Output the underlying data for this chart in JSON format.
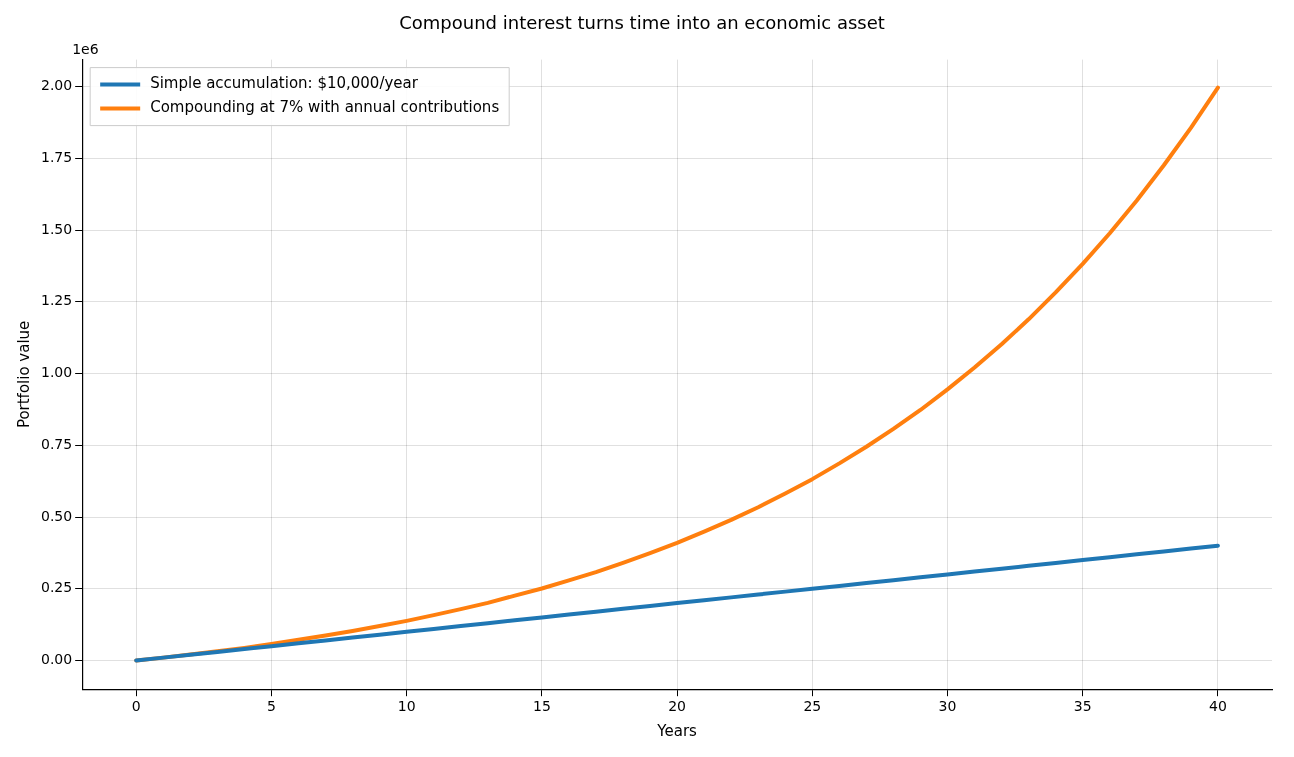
{
  "chart_data": {
    "type": "line",
    "title": "Compound interest turns time into an economic asset",
    "xlabel": "Years",
    "ylabel": "Portfolio value",
    "annotations": [
      "1e6"
    ],
    "x": [
      0,
      1,
      2,
      3,
      4,
      5,
      6,
      7,
      8,
      9,
      10,
      11,
      12,
      13,
      14,
      15,
      16,
      17,
      18,
      19,
      20,
      21,
      22,
      23,
      24,
      25,
      26,
      27,
      28,
      29,
      30,
      31,
      32,
      33,
      34,
      35,
      36,
      37,
      38,
      39,
      40
    ],
    "series": [
      {
        "name": "Simple accumulation: $10,000/year",
        "color": "#1f77b4",
        "values": [
          0,
          0.01,
          0.02,
          0.03,
          0.04,
          0.05,
          0.06,
          0.07,
          0.08,
          0.09,
          0.1,
          0.11,
          0.12,
          0.13,
          0.14,
          0.15,
          0.16,
          0.17,
          0.18,
          0.19,
          0.2,
          0.21,
          0.22,
          0.23,
          0.24,
          0.25,
          0.26,
          0.27,
          0.28,
          0.29,
          0.3,
          0.31,
          0.32,
          0.33,
          0.34,
          0.35,
          0.36,
          0.37,
          0.38,
          0.39,
          0.4
        ]
      },
      {
        "name": "Compounding at 7% with annual contributions",
        "color": "#ff7f0e",
        "values": [
          0,
          0.01,
          0.021,
          0.032,
          0.044,
          0.058,
          0.072,
          0.087,
          0.103,
          0.12,
          0.138,
          0.158,
          0.179,
          0.201,
          0.226,
          0.251,
          0.279,
          0.308,
          0.34,
          0.374,
          0.41,
          0.449,
          0.49,
          0.534,
          0.582,
          0.632,
          0.687,
          0.745,
          0.807,
          0.873,
          0.945,
          1.021,
          1.102,
          1.189,
          1.283,
          1.382,
          1.489,
          1.603,
          1.726,
          1.856,
          1.996
        ]
      }
    ],
    "xlim": [
      -2,
      42
    ],
    "xticks": [
      0,
      5,
      10,
      15,
      20,
      25,
      30,
      35,
      40
    ],
    "ylim": [
      -0.1,
      2.094
    ],
    "yticks": [
      {
        "value": 0,
        "label": "0.00"
      },
      {
        "value": 0.25,
        "label": "0.25"
      },
      {
        "value": 0.5,
        "label": "0.50"
      },
      {
        "value": 0.75,
        "label": "0.75"
      },
      {
        "value": 1,
        "label": "1.00"
      },
      {
        "value": 1.25,
        "label": "1.25"
      },
      {
        "value": 1.5,
        "label": "1.50"
      },
      {
        "value": 1.75,
        "label": "1.75"
      },
      {
        "value": 2,
        "label": "2.00"
      }
    ],
    "grid": true,
    "legend": "top left",
    "marker": "none",
    "line_style": "solid"
  }
}
